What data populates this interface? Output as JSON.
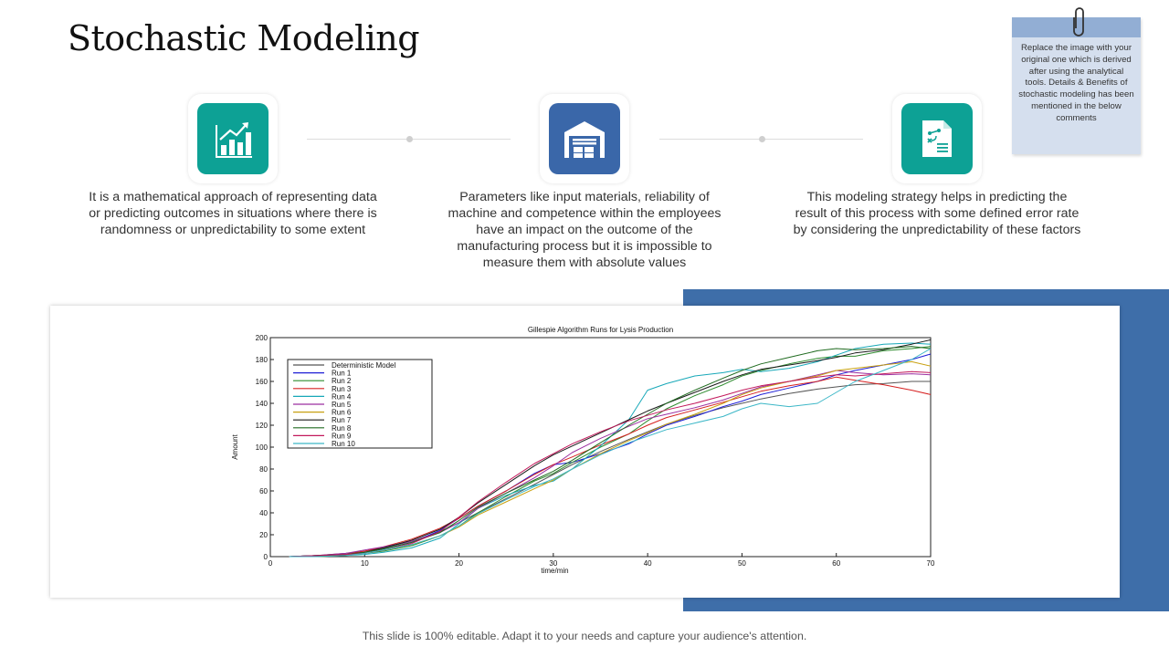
{
  "slide": {
    "title": "Stochastic Modeling",
    "footer": "This slide is 100% editable. Adapt it to your needs and capture your audience's attention."
  },
  "note": {
    "text": "Replace the image with your original one which is derived after using the analytical tools. Details & Benefits of stochastic modeling has been mentioned in the below comments"
  },
  "steps": [
    {
      "icon": "bar-chart-growth-icon",
      "color": "#0da195",
      "text": "It is a mathematical approach of representing data or predicting outcomes in situations where there is randomness or unpredictability to some extent"
    },
    {
      "icon": "warehouse-icon",
      "color": "#3a67a9",
      "text": "Parameters like input materials, reliability of machine and competence within the employees have an impact on the outcome of the manufacturing process but it is impossible to measure them with absolute values"
    },
    {
      "icon": "document-flow-icon",
      "color": "#0da195",
      "text": "This modeling strategy helps in predicting the result of this process with some defined error rate by considering the unpredictability of these factors"
    }
  ],
  "chart_data": {
    "type": "line",
    "title": "Gillespie Algorithm Runs for Lysis Production",
    "xlabel": "time/min",
    "ylabel": "Amount",
    "xlim": [
      0,
      70
    ],
    "ylim": [
      0,
      200
    ],
    "xticks": [
      0,
      10,
      20,
      30,
      40,
      50,
      60,
      70
    ],
    "yticks": [
      0,
      20,
      40,
      60,
      80,
      100,
      120,
      140,
      160,
      180,
      200
    ],
    "x": [
      2,
      5,
      8,
      10,
      12,
      15,
      18,
      20,
      22,
      25,
      28,
      30,
      32,
      35,
      38,
      40,
      42,
      45,
      48,
      50,
      52,
      55,
      58,
      60,
      62,
      65,
      68,
      70
    ],
    "series": [
      {
        "name": "Deterministic Model",
        "color": "#555555",
        "values": [
          0,
          1,
          3,
          5,
          8,
          14,
          23,
          31,
          40,
          53,
          66,
          75,
          84,
          96,
          107,
          114,
          121,
          129,
          136,
          140,
          144,
          149,
          153,
          155,
          157,
          158,
          160,
          160
        ]
      },
      {
        "name": "Run 1",
        "color": "#1f1fd6",
        "values": [
          0,
          0,
          2,
          4,
          7,
          13,
          24,
          35,
          46,
          60,
          76,
          84,
          86,
          94,
          103,
          112,
          120,
          128,
          137,
          142,
          148,
          154,
          160,
          166,
          170,
          175,
          180,
          185
        ]
      },
      {
        "name": "Run 2",
        "color": "#2e8b2e",
        "values": [
          0,
          1,
          2,
          3,
          5,
          10,
          19,
          28,
          40,
          55,
          69,
          76,
          86,
          100,
          112,
          124,
          135,
          147,
          157,
          165,
          170,
          176,
          181,
          183,
          183,
          188,
          190,
          192
        ]
      },
      {
        "name": "Run 3",
        "color": "#d62020",
        "values": [
          0,
          0,
          2,
          5,
          9,
          16,
          26,
          35,
          46,
          60,
          75,
          84,
          91,
          102,
          112,
          120,
          127,
          134,
          141,
          146,
          151,
          156,
          160,
          164,
          161,
          157,
          152,
          148
        ]
      },
      {
        "name": "Run 4",
        "color": "#17a8b8",
        "values": [
          0,
          1,
          1,
          2,
          4,
          8,
          17,
          30,
          44,
          56,
          65,
          69,
          80,
          101,
          125,
          152,
          158,
          165,
          168,
          171,
          169,
          172,
          178,
          184,
          190,
          194,
          195,
          194
        ]
      },
      {
        "name": "Run 5",
        "color": "#9c2fa0",
        "values": [
          0,
          1,
          3,
          6,
          9,
          14,
          22,
          31,
          44,
          58,
          72,
          83,
          95,
          108,
          119,
          126,
          130,
          136,
          143,
          149,
          155,
          160,
          166,
          170,
          168,
          166,
          167,
          166
        ]
      },
      {
        "name": "Run 6",
        "color": "#c8a010",
        "values": [
          0,
          0,
          1,
          3,
          6,
          11,
          19,
          27,
          38,
          50,
          62,
          70,
          80,
          94,
          106,
          113,
          121,
          130,
          140,
          148,
          154,
          160,
          165,
          170,
          172,
          175,
          178,
          174
        ]
      },
      {
        "name": "Run 7",
        "color": "#1a1a1a",
        "values": [
          0,
          1,
          2,
          4,
          8,
          15,
          25,
          36,
          49,
          66,
          83,
          93,
          101,
          113,
          125,
          133,
          140,
          150,
          160,
          166,
          171,
          175,
          179,
          182,
          186,
          189,
          194,
          198
        ]
      },
      {
        "name": "Run 8",
        "color": "#206b20",
        "values": [
          0,
          0,
          2,
          4,
          7,
          13,
          22,
          33,
          45,
          58,
          70,
          78,
          88,
          104,
          120,
          130,
          140,
          152,
          163,
          170,
          176,
          182,
          188,
          190,
          189,
          190,
          192,
          190
        ]
      },
      {
        "name": "Run 9",
        "color": "#c2185b",
        "values": [
          0,
          1,
          2,
          3,
          6,
          12,
          23,
          36,
          50,
          68,
          85,
          94,
          103,
          114,
          124,
          129,
          134,
          140,
          147,
          152,
          156,
          160,
          164,
          166,
          165,
          167,
          169,
          168
        ]
      },
      {
        "name": "Run 10",
        "color": "#3cb7c7",
        "values": [
          0,
          0,
          1,
          3,
          6,
          11,
          19,
          28,
          39,
          52,
          64,
          71,
          80,
          93,
          104,
          110,
          116,
          122,
          128,
          135,
          140,
          137,
          140,
          150,
          160,
          170,
          180,
          190
        ]
      }
    ]
  }
}
